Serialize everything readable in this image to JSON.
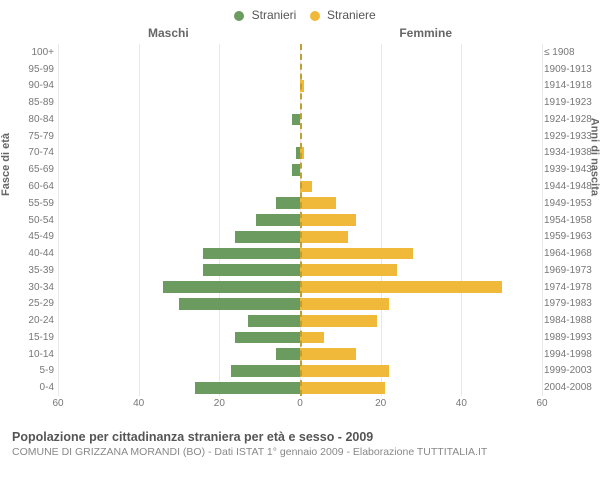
{
  "legend": {
    "male_label": "Stranieri",
    "female_label": "Straniere"
  },
  "chart": {
    "type": "population-pyramid",
    "male_title": "Maschi",
    "female_title": "Femmine",
    "y_left_title": "Fasce di età",
    "y_right_title": "Anni di nascita",
    "male_color": "#6b9b5e",
    "female_color": "#f0b93a",
    "grid_color": "#e8e8e8",
    "center_color": "#c0a030",
    "background_color": "#ffffff",
    "label_fontsize": 10,
    "title_fontsize": 12,
    "x_max": 60,
    "x_ticks": [
      60,
      40,
      20,
      0,
      20,
      40,
      60
    ],
    "rows": [
      {
        "age": "100+",
        "year": "≤ 1908",
        "m": 0,
        "f": 0
      },
      {
        "age": "95-99",
        "year": "1909-1913",
        "m": 0,
        "f": 0
      },
      {
        "age": "90-94",
        "year": "1914-1918",
        "m": 0,
        "f": 1
      },
      {
        "age": "85-89",
        "year": "1919-1923",
        "m": 0,
        "f": 0
      },
      {
        "age": "80-84",
        "year": "1924-1928",
        "m": 2,
        "f": 0
      },
      {
        "age": "75-79",
        "year": "1929-1933",
        "m": 0,
        "f": 0
      },
      {
        "age": "70-74",
        "year": "1934-1938",
        "m": 1,
        "f": 1
      },
      {
        "age": "65-69",
        "year": "1939-1943",
        "m": 2,
        "f": 0
      },
      {
        "age": "60-64",
        "year": "1944-1948",
        "m": 0,
        "f": 3
      },
      {
        "age": "55-59",
        "year": "1949-1953",
        "m": 6,
        "f": 9
      },
      {
        "age": "50-54",
        "year": "1954-1958",
        "m": 11,
        "f": 14
      },
      {
        "age": "45-49",
        "year": "1959-1963",
        "m": 16,
        "f": 12
      },
      {
        "age": "40-44",
        "year": "1964-1968",
        "m": 24,
        "f": 28
      },
      {
        "age": "35-39",
        "year": "1969-1973",
        "m": 24,
        "f": 24
      },
      {
        "age": "30-34",
        "year": "1974-1978",
        "m": 34,
        "f": 50
      },
      {
        "age": "25-29",
        "year": "1979-1983",
        "m": 30,
        "f": 22
      },
      {
        "age": "20-24",
        "year": "1984-1988",
        "m": 13,
        "f": 19
      },
      {
        "age": "15-19",
        "year": "1989-1993",
        "m": 16,
        "f": 6
      },
      {
        "age": "10-14",
        "year": "1994-1998",
        "m": 6,
        "f": 14
      },
      {
        "age": "5-9",
        "year": "1999-2003",
        "m": 17,
        "f": 22
      },
      {
        "age": "0-4",
        "year": "2004-2008",
        "m": 26,
        "f": 21
      }
    ]
  },
  "footer": {
    "title": "Popolazione per cittadinanza straniera per età e sesso - 2009",
    "subtitle": "COMUNE DI GRIZZANA MORANDI (BO) - Dati ISTAT 1° gennaio 2009 - Elaborazione TUTTITALIA.IT"
  }
}
